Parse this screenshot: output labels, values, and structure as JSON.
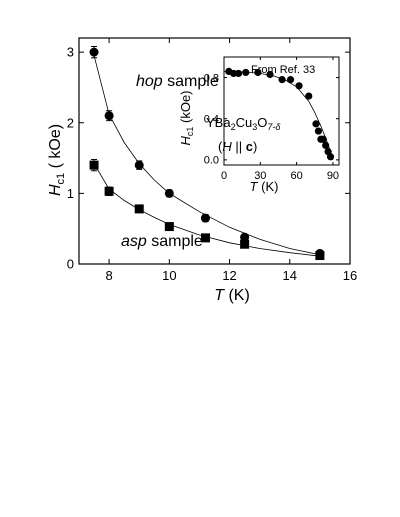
{
  "chart_data": [
    {
      "type": "scatter",
      "title": "",
      "xlabel": "T (K)",
      "ylabel": "H_c1 ( kOe)",
      "xlim": [
        7,
        16
      ],
      "ylim": [
        0,
        3.2
      ],
      "x_ticks": [
        8,
        10,
        12,
        14,
        16
      ],
      "y_ticks": [
        0,
        1,
        2,
        3
      ],
      "grid": false,
      "series": [
        {
          "name": "hop sample",
          "marker": "circle",
          "x": [
            7.5,
            8.0,
            9.0,
            10.0,
            11.2,
            12.5,
            15.0
          ],
          "y": [
            3.0,
            2.1,
            1.4,
            1.0,
            0.65,
            0.38,
            0.15
          ],
          "yerr": [
            0.08,
            0.07,
            0.06,
            0.05,
            0.05,
            0.04,
            0.03
          ]
        },
        {
          "name": "asp sample",
          "marker": "square",
          "x": [
            7.5,
            8.0,
            9.0,
            10.0,
            11.2,
            12.5,
            15.0
          ],
          "y": [
            1.4,
            1.03,
            0.78,
            0.53,
            0.37,
            0.28,
            0.12
          ],
          "yerr": [
            0.08,
            0.06,
            0.05,
            0.05,
            0.04,
            0.03,
            0.03
          ]
        }
      ],
      "fit_curves": [
        {
          "series": "hop sample",
          "x": [
            7.5,
            8.0,
            8.5,
            9.0,
            9.5,
            10.0,
            11.0,
            12.0,
            13.0,
            14.0,
            15.0
          ],
          "y": [
            2.95,
            2.12,
            1.72,
            1.42,
            1.19,
            1.0,
            0.74,
            0.52,
            0.35,
            0.22,
            0.13
          ]
        },
        {
          "series": "asp sample",
          "x": [
            7.5,
            8.0,
            8.5,
            9.0,
            9.5,
            10.0,
            11.0,
            12.0,
            13.0,
            14.0,
            15.0
          ],
          "y": [
            1.42,
            1.06,
            0.9,
            0.77,
            0.66,
            0.56,
            0.41,
            0.3,
            0.22,
            0.16,
            0.11
          ]
        }
      ]
    },
    {
      "type": "scatter",
      "title": "",
      "xlabel": "T (K)",
      "ylabel": "H_c1 (kOe)",
      "xlim": [
        0,
        95
      ],
      "ylim": [
        -0.05,
        1.0
      ],
      "x_ticks": [
        0,
        30,
        60,
        90
      ],
      "y_ticks": [
        0.0,
        0.4,
        0.8
      ],
      "grid": false,
      "annotations": [
        {
          "text": "From Ref. 33"
        },
        {
          "text": "YBa2Cu3O7-δ"
        },
        {
          "text": "(H || c)"
        }
      ],
      "series": [
        {
          "name": "",
          "marker": "circle",
          "x": [
            4,
            8,
            12,
            18,
            28,
            38,
            48,
            55,
            62,
            70,
            76,
            78,
            80,
            82,
            84,
            86,
            88
          ],
          "y": [
            0.86,
            0.84,
            0.84,
            0.85,
            0.85,
            0.83,
            0.78,
            0.78,
            0.72,
            0.62,
            0.35,
            0.28,
            0.2,
            0.2,
            0.14,
            0.08,
            0.03
          ]
        }
      ],
      "fit_curves": [
        {
          "series": "",
          "x": [
            0,
            10,
            20,
            30,
            40,
            50,
            60,
            70,
            75,
            80,
            85,
            88,
            90
          ],
          "y": [
            0.86,
            0.86,
            0.85,
            0.84,
            0.82,
            0.78,
            0.71,
            0.57,
            0.46,
            0.33,
            0.18,
            0.08,
            0.0
          ]
        }
      ]
    }
  ],
  "labels": {
    "main_ylabel_base": "H",
    "main_ylabel_sub": "c1",
    "main_ylabel_unit": " ( kOe)",
    "main_xlabel_var": "T",
    "main_xlabel_unit": " (K)",
    "hop_label_italic": "hop",
    "hop_label_rest": " sample",
    "asp_label_italic": "asp",
    "asp_label_rest": " sample",
    "inset_ylabel_base": "H",
    "inset_ylabel_sub": "c1",
    "inset_ylabel_unit": " (kOe)",
    "inset_xlabel_var": "T",
    "inset_xlabel_unit": " (K)",
    "inset_ref": "From Ref. 33",
    "inset_formula_parts": [
      "YBa",
      "2",
      "Cu",
      "3",
      "O",
      "7-δ"
    ],
    "inset_field_open": "(",
    "inset_field_h": "H",
    "inset_field_mid": " || ",
    "inset_field_c": "c",
    "inset_field_close": ")"
  }
}
